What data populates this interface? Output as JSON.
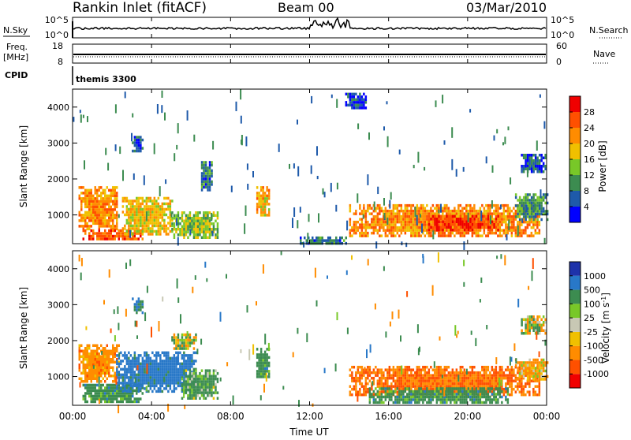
{
  "header": {
    "station": "Rankin Inlet (fitACF)",
    "beam": "Beam 00",
    "date": "03/Mar/2010"
  },
  "top_panels": {
    "nsky_label": "N.Sky",
    "nsky_ticks": [
      "10^5",
      "10^0"
    ],
    "nsearch_label": "N.Search",
    "nsearch_ticks": [
      "10^5",
      "10^0"
    ],
    "freq_label_1": "Freq.",
    "freq_label_2": "[MHz]",
    "freq_ticks": [
      "18",
      "8"
    ],
    "nave_label": "Nave",
    "nave_ticks": [
      "60",
      "0"
    ],
    "cpid_label": "CPID",
    "cpid_value": "themis 3300"
  },
  "chart_data": [
    {
      "type": "heatmap",
      "name": "power",
      "ylabel": "Slant Range [km]",
      "ylim": [
        200,
        4500
      ],
      "yticks": [
        "1000",
        "2000",
        "3000",
        "4000"
      ],
      "xlim": [
        "00:00",
        "24:00"
      ],
      "colorbar_label": "Power [dB]",
      "colorbar_ticks": [
        "4",
        "8",
        "12",
        "16",
        "20",
        "24",
        "28"
      ],
      "colors": [
        "#0000ff",
        "#1e5aaa",
        "#3c8c50",
        "#78c828",
        "#f0c000",
        "#ff8c00",
        "#ff5000",
        "#f00000"
      ],
      "regions": [
        {
          "t": [
            0.3,
            2.2
          ],
          "r": [
            600,
            1800
          ],
          "v": 22
        },
        {
          "t": [
            0.5,
            3.5
          ],
          "r": [
            300,
            600
          ],
          "v": 26
        },
        {
          "t": [
            2.5,
            5.0
          ],
          "r": [
            500,
            1500
          ],
          "v": 18
        },
        {
          "t": [
            5.0,
            7.3
          ],
          "r": [
            400,
            1100
          ],
          "v": 14
        },
        {
          "t": [
            9.3,
            9.9
          ],
          "r": [
            1000,
            1800
          ],
          "v": 20
        },
        {
          "t": [
            14.0,
            23.6
          ],
          "r": [
            400,
            1300
          ],
          "v": 22
        },
        {
          "t": [
            18.0,
            21.5
          ],
          "r": [
            600,
            1000
          ],
          "v": 28
        },
        {
          "t": [
            22.4,
            24.0
          ],
          "r": [
            900,
            1600
          ],
          "v": 10
        },
        {
          "t": [
            11.5,
            13.8
          ],
          "r": [
            200,
            400
          ],
          "v": 8
        },
        {
          "t": [
            3.0,
            3.5
          ],
          "r": [
            2800,
            3200
          ],
          "v": 6
        },
        {
          "t": [
            6.5,
            7.0
          ],
          "r": [
            1700,
            2500
          ],
          "v": 8
        },
        {
          "t": [
            22.7,
            23.9
          ],
          "r": [
            2200,
            2700
          ],
          "v": 6
        },
        {
          "t": [
            13.8,
            14.8
          ],
          "r": [
            4000,
            4400
          ],
          "v": 5
        }
      ]
    },
    {
      "type": "heatmap",
      "name": "velocity",
      "ylabel": "Slant Range [km]",
      "ylim": [
        200,
        4500
      ],
      "yticks": [
        "1000",
        "2000",
        "3000",
        "4000"
      ],
      "xlabel": "Time UT",
      "xticks": [
        "00:00",
        "04:00",
        "08:00",
        "12:00",
        "16:00",
        "20:00",
        "00:00"
      ],
      "colorbar_label": "Velocity [m s-1]",
      "colorbar_label_main": "Velocity [m s",
      "colorbar_label_sup": "-1",
      "colorbar_label_end": "]",
      "colorbar_ticks": [
        "1000",
        "500",
        "100",
        "25",
        "-25",
        "-100",
        "-500",
        "-1000"
      ],
      "colors": [
        "#1e32aa",
        "#2878c8",
        "#3c8c50",
        "#78c828",
        "#c8c8b4",
        "#f0c000",
        "#ff8c00",
        "#ff5000",
        "#f00000"
      ],
      "regions": [
        {
          "t": [
            0.3,
            2.3
          ],
          "r": [
            900,
            1900
          ],
          "v": -300
        },
        {
          "t": [
            0.5,
            3.5
          ],
          "r": [
            300,
            800
          ],
          "v": 300
        },
        {
          "t": [
            2.2,
            6.2
          ],
          "r": [
            600,
            1700
          ],
          "v": 700
        },
        {
          "t": [
            5.5,
            7.3
          ],
          "r": [
            400,
            1200
          ],
          "v": 200
        },
        {
          "t": [
            9.3,
            9.9
          ],
          "r": [
            1000,
            1800
          ],
          "v": 300
        },
        {
          "t": [
            14.0,
            23.6
          ],
          "r": [
            500,
            1300
          ],
          "v": -500
        },
        {
          "t": [
            15.0,
            22.0
          ],
          "r": [
            300,
            700
          ],
          "v": 300
        },
        {
          "t": [
            22.4,
            24.0
          ],
          "r": [
            900,
            1500
          ],
          "v": -150
        },
        {
          "t": [
            22.7,
            23.9
          ],
          "r": [
            2200,
            2700
          ],
          "v": 0
        },
        {
          "t": [
            5.0,
            6.2
          ],
          "r": [
            1800,
            2200
          ],
          "v": 0
        },
        {
          "t": [
            3.0,
            3.5
          ],
          "r": [
            2800,
            3200
          ],
          "v": 600
        }
      ]
    }
  ]
}
